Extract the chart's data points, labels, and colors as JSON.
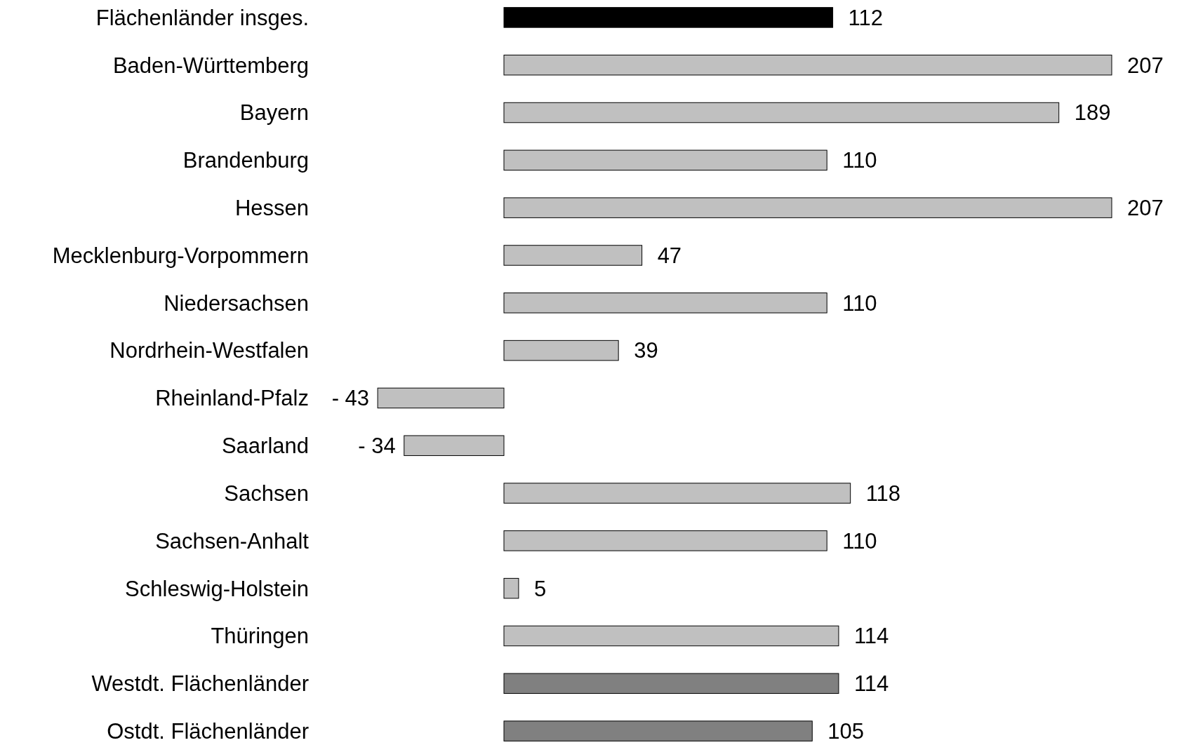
{
  "chart_data": {
    "type": "bar",
    "orientation": "horizontal",
    "categories": [
      "Flächenländer insges.",
      "Baden-Württemberg",
      "Bayern",
      "Brandenburg",
      "Hessen",
      "Mecklenburg-Vorpommern",
      "Niedersachsen",
      "Nordrhein-Westfalen",
      "Rheinland-Pfalz",
      "Saarland",
      "Sachsen",
      "Sachsen-Anhalt",
      "Schleswig-Holstein",
      "Thüringen",
      "Westdt. Flächenländer",
      "Ostdt. Flächenländer"
    ],
    "values": [
      112,
      207,
      189,
      110,
      207,
      47,
      110,
      39,
      -43,
      -34,
      118,
      110,
      5,
      114,
      114,
      105
    ],
    "colors": [
      "#000000",
      "#c0c0c0",
      "#c0c0c0",
      "#c0c0c0",
      "#c0c0c0",
      "#c0c0c0",
      "#c0c0c0",
      "#c0c0c0",
      "#c0c0c0",
      "#c0c0c0",
      "#c0c0c0",
      "#c0c0c0",
      "#c0c0c0",
      "#c0c0c0",
      "#808080",
      "#808080"
    ],
    "value_labels": [
      "112",
      "207",
      "189",
      "110",
      "207",
      "47",
      "110",
      "39",
      "- 43",
      "- 34",
      "118",
      "110",
      "5",
      "114",
      "114",
      "105"
    ]
  }
}
